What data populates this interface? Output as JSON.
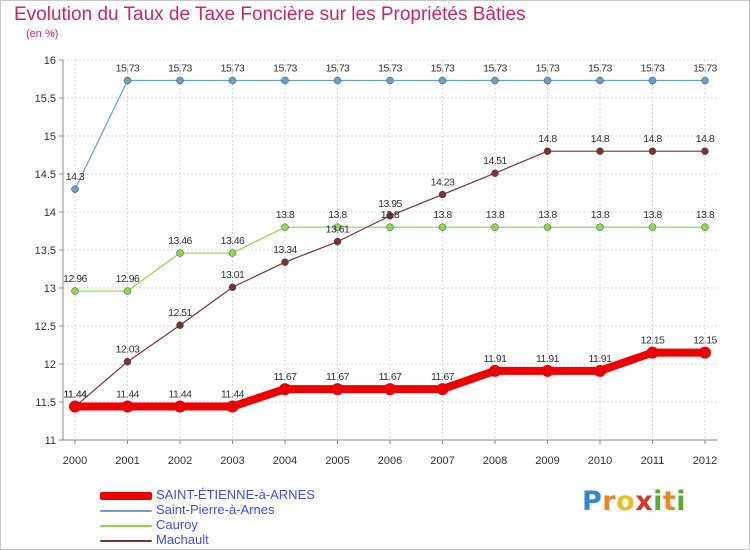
{
  "header": {
    "title": "Evolution du Taux de Taxe Foncière sur les Propriétés Bâties",
    "subtitle": "(en %)"
  },
  "logo": {
    "letters": [
      "P",
      "r",
      "o",
      "x",
      "i",
      "t",
      "i"
    ],
    "colors": [
      "#2f86d1",
      "#e8872a",
      "#e4c227",
      "#d9342b",
      "#5daa33",
      "#e8872a",
      "#5daa33"
    ]
  },
  "chart_data": {
    "type": "line",
    "x": [
      "2000",
      "2001",
      "2002",
      "2003",
      "2004",
      "2005",
      "2006",
      "2007",
      "2008",
      "2009",
      "2010",
      "2011",
      "2012"
    ],
    "ylim": [
      11,
      16
    ],
    "yticks": [
      "11",
      "11.5",
      "12",
      "12.5",
      "13",
      "13.5",
      "14",
      "14.5",
      "15",
      "15.5",
      "16"
    ],
    "grid": true,
    "series": [
      {
        "name": "SAINT-ÉTIENNE-à-ARNES",
        "color": "#ee0000",
        "values": [
          11.44,
          11.44,
          11.44,
          11.44,
          11.67,
          11.67,
          11.67,
          11.67,
          11.91,
          11.91,
          11.91,
          12.15,
          12.15
        ],
        "labels": [
          "11.44",
          "11.44",
          "11.44",
          "11.44",
          "11.67",
          "11.67",
          "11.67",
          "11.67",
          "11.91",
          "11.91",
          "11.91",
          "12.15",
          "12.15"
        ]
      },
      {
        "name": "Saint-Pierre-à-Arnes",
        "color": "#6a9fcf",
        "values": [
          14.3,
          15.73,
          15.73,
          15.73,
          15.73,
          15.73,
          15.73,
          15.73,
          15.73,
          15.73,
          15.73,
          15.73,
          15.73
        ],
        "labels": [
          "14.3",
          "15.73",
          "15.73",
          "15.73",
          "15.73",
          "15.73",
          "15.73",
          "15.73",
          "15.73",
          "15.73",
          "15.73",
          "15.73",
          "15.73"
        ]
      },
      {
        "name": "Cauroy",
        "color": "#8ed64a",
        "values": [
          12.96,
          12.96,
          13.46,
          13.46,
          13.8,
          13.8,
          13.8,
          13.8,
          13.8,
          13.8,
          13.8,
          13.8,
          13.8
        ],
        "labels": [
          "12.96",
          "12.96",
          "13.46",
          "13.46",
          "13.8",
          "13.8",
          "13.8",
          "13.8",
          "13.8",
          "13.8",
          "13.8",
          "13.8",
          "13.8"
        ]
      },
      {
        "name": "Machault",
        "color": "#7a3434",
        "values": [
          11.44,
          12.03,
          12.51,
          13.01,
          13.34,
          13.61,
          13.95,
          14.23,
          14.51,
          14.8,
          14.8,
          14.8,
          14.8
        ],
        "labels": [
          "11.44",
          "12.03",
          "12.51",
          "13.01",
          "13.34",
          "13.61",
          "13.95",
          "14.23",
          "14.51",
          "14.8",
          "14.8",
          "14.8",
          "14.8"
        ]
      }
    ],
    "legend_position": "bottom-left"
  }
}
